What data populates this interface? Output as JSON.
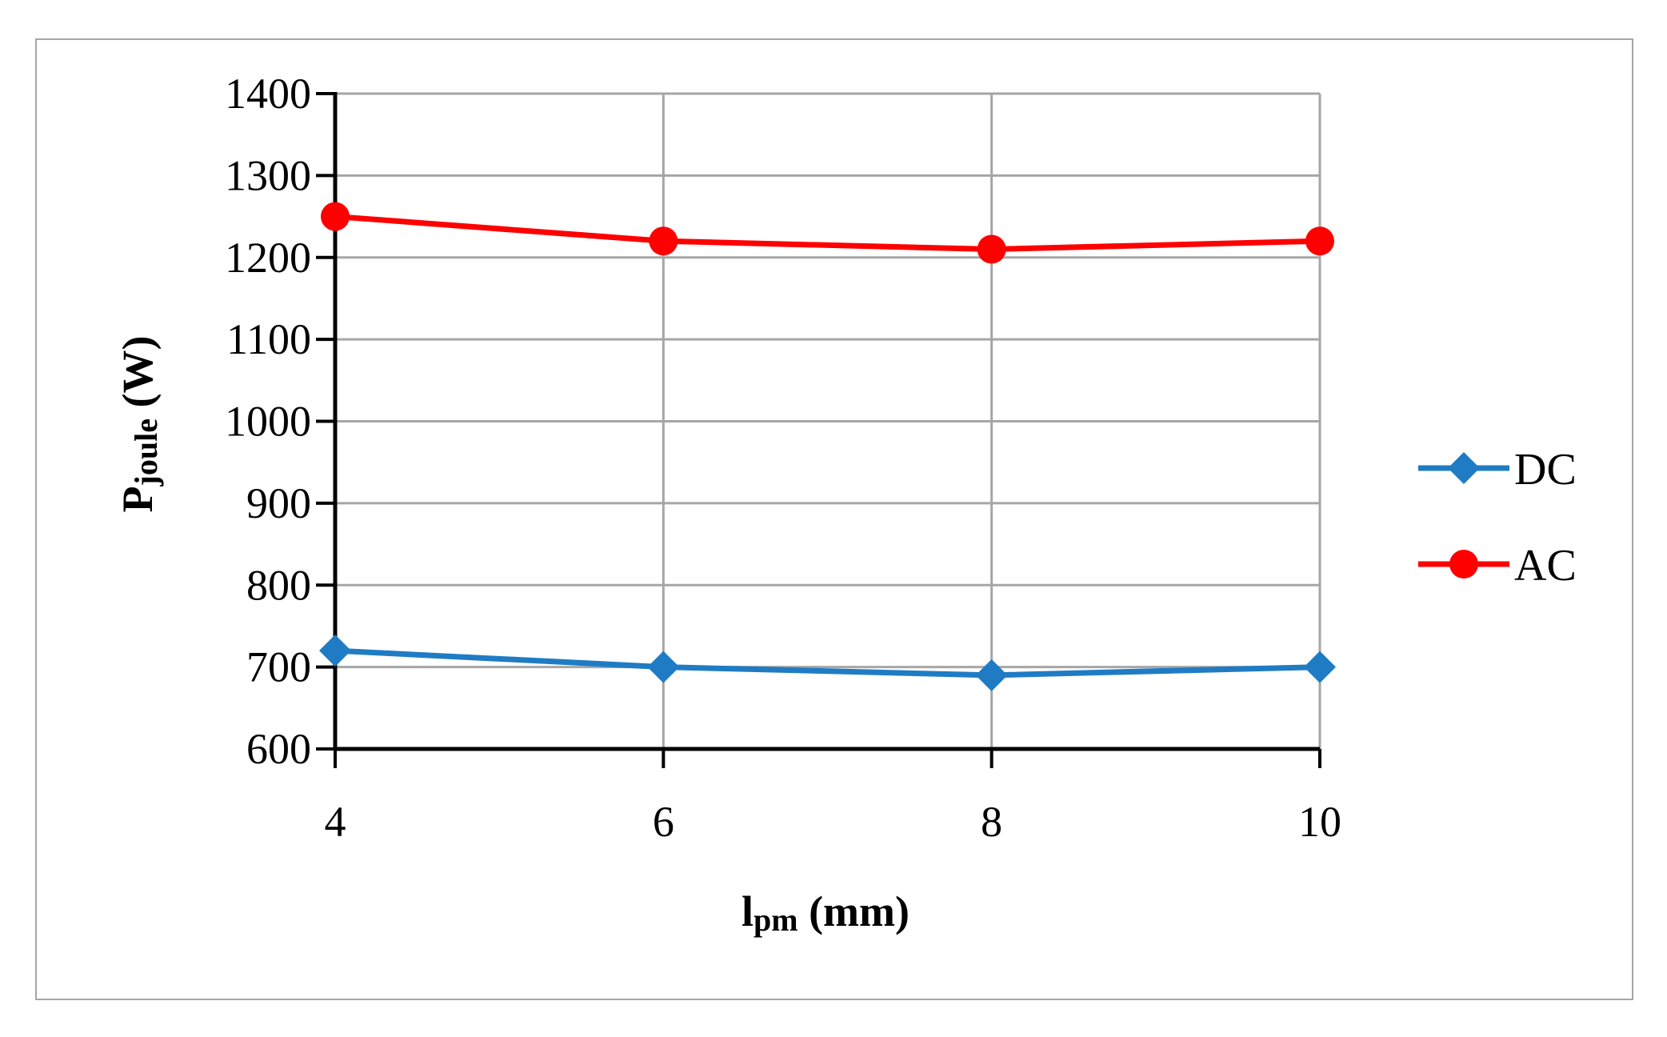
{
  "chart_data": {
    "type": "line",
    "title": "",
    "xlabel": {
      "main": "l",
      "sub": "pm",
      "suffix": " (mm)"
    },
    "ylabel": {
      "main": "P",
      "sub": "joule",
      "suffix": " (W)"
    },
    "x": [
      4,
      6,
      8,
      10
    ],
    "x_tick_labels": [
      "4",
      "6",
      "8",
      "10"
    ],
    "xlim": [
      4,
      10
    ],
    "ylim": [
      600,
      1400
    ],
    "y_ticks": [
      600,
      700,
      800,
      900,
      1000,
      1100,
      1200,
      1300,
      1400
    ],
    "y_tick_labels": [
      "600",
      "700",
      "800",
      "900",
      "1000",
      "1100",
      "1200",
      "1300",
      "1400"
    ],
    "grid": true,
    "legend_position": "right",
    "series": [
      {
        "name": "DC",
        "values": [
          720,
          700,
          690,
          700
        ],
        "color": "#1f7cc4",
        "marker": "diamond"
      },
      {
        "name": "AC",
        "values": [
          1250,
          1220,
          1210,
          1220
        ],
        "color": "#ff0000",
        "marker": "circle"
      }
    ]
  }
}
